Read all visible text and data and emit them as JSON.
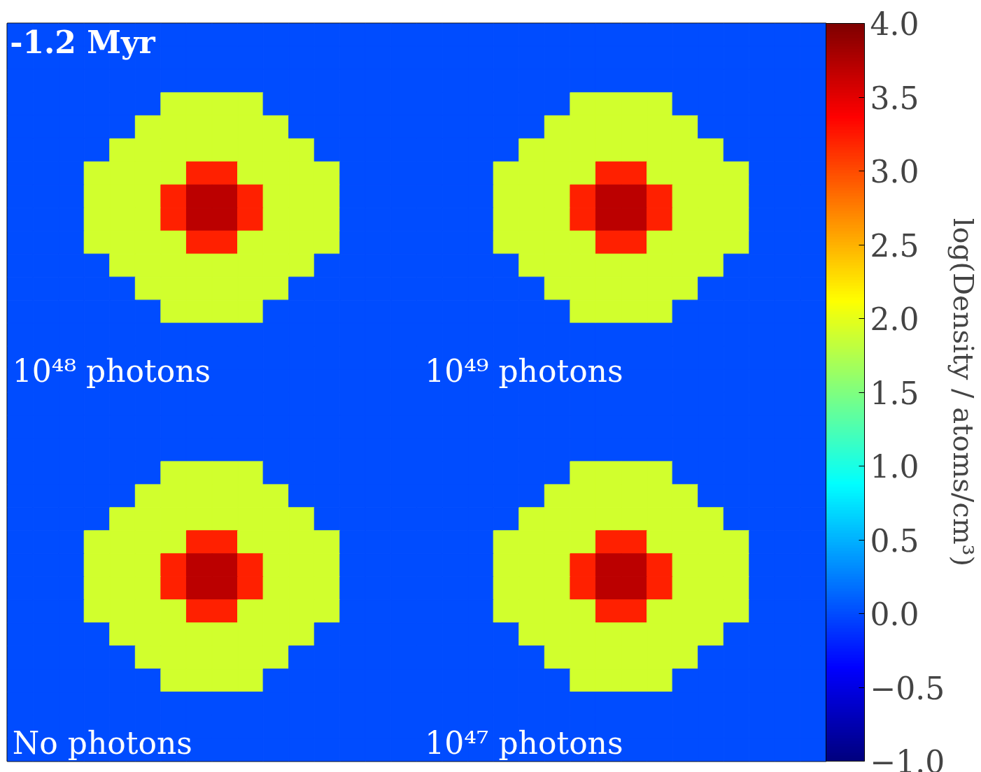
{
  "chart_data": {
    "type": "heatmap",
    "categories": [
      null,
      null,
      null,
      null,
      null,
      null,
      null,
      null,
      null,
      null,
      null,
      null,
      null,
      null,
      null,
      null,
      null,
      null,
      null,
      null,
      null,
      null,
      null,
      null,
      null,
      null,
      null,
      null,
      null,
      null,
      null,
      null
    ],
    "y_categories": [
      null,
      null,
      null,
      null,
      null,
      null,
      null,
      null,
      null,
      null,
      null,
      null,
      null,
      null,
      null,
      null,
      null,
      null,
      null,
      null,
      null,
      null,
      null,
      null,
      null,
      null,
      null,
      null,
      null,
      null,
      null,
      null
    ],
    "cells": [
      [
        0,
        0,
        0,
        0,
        0,
        0,
        0,
        0,
        0,
        0,
        0,
        0,
        0,
        0,
        0,
        0,
        0,
        0,
        0,
        0,
        0,
        0,
        0,
        0,
        0,
        0,
        0,
        0,
        0,
        0,
        0,
        0
      ],
      [
        0,
        0,
        0,
        0,
        0,
        0,
        0,
        0,
        0,
        0,
        0,
        0,
        0,
        0,
        0,
        0,
        0,
        0,
        0,
        0,
        0,
        0,
        0,
        0,
        0,
        0,
        0,
        0,
        0,
        0,
        0,
        0
      ],
      [
        0,
        0,
        0,
        0,
        0,
        0,
        0,
        0,
        0,
        0,
        0,
        0,
        0,
        0,
        0,
        0,
        0,
        0,
        0,
        0,
        0,
        0,
        0,
        0,
        0,
        0,
        0,
        0,
        0,
        0,
        0,
        0
      ],
      [
        0,
        0,
        0,
        0,
        0,
        0,
        1.9,
        1.9,
        1.9,
        1.9,
        0,
        0,
        0,
        0,
        0,
        0,
        0,
        0,
        0,
        0,
        0,
        0,
        1.9,
        1.9,
        1.9,
        1.9,
        0,
        0,
        0,
        0,
        0,
        0
      ],
      [
        0,
        0,
        0,
        0,
        0,
        1.9,
        1.9,
        1.9,
        1.9,
        1.9,
        1.9,
        0,
        0,
        0,
        0,
        0,
        0,
        0,
        0,
        0,
        0,
        1.9,
        1.9,
        1.9,
        1.9,
        1.9,
        1.9,
        0,
        0,
        0,
        0,
        0
      ],
      [
        0,
        0,
        0,
        0,
        1.9,
        1.9,
        1.9,
        1.9,
        1.9,
        1.9,
        1.9,
        1.9,
        0,
        0,
        0,
        0,
        0,
        0,
        0,
        0,
        1.9,
        1.9,
        1.9,
        1.9,
        1.9,
        1.9,
        1.9,
        1.9,
        0,
        0,
        0,
        0
      ],
      [
        0,
        0,
        0,
        1.9,
        1.9,
        1.9,
        1.9,
        3.2,
        3.2,
        1.9,
        1.9,
        1.9,
        1.9,
        0,
        0,
        0,
        0,
        0,
        0,
        1.9,
        1.9,
        1.9,
        1.9,
        3.2,
        3.2,
        1.9,
        1.9,
        1.9,
        1.9,
        0,
        0,
        0
      ],
      [
        0,
        0,
        0,
        1.9,
        1.9,
        1.9,
        3.2,
        3.7,
        3.7,
        3.2,
        1.9,
        1.9,
        1.9,
        0,
        0,
        0,
        0,
        0,
        0,
        1.9,
        1.9,
        1.9,
        3.2,
        3.7,
        3.7,
        3.2,
        1.9,
        1.9,
        1.9,
        0,
        0,
        0
      ],
      [
        0,
        0,
        0,
        1.9,
        1.9,
        1.9,
        3.2,
        3.7,
        3.7,
        3.2,
        1.9,
        1.9,
        1.9,
        0,
        0,
        0,
        0,
        0,
        0,
        1.9,
        1.9,
        1.9,
        3.2,
        3.7,
        3.7,
        3.2,
        1.9,
        1.9,
        1.9,
        0,
        0,
        0
      ],
      [
        0,
        0,
        0,
        1.9,
        1.9,
        1.9,
        1.9,
        3.2,
        3.2,
        1.9,
        1.9,
        1.9,
        1.9,
        0,
        0,
        0,
        0,
        0,
        0,
        1.9,
        1.9,
        1.9,
        1.9,
        3.2,
        3.2,
        1.9,
        1.9,
        1.9,
        1.9,
        0,
        0,
        0
      ],
      [
        0,
        0,
        0,
        0,
        1.9,
        1.9,
        1.9,
        1.9,
        1.9,
        1.9,
        1.9,
        1.9,
        0,
        0,
        0,
        0,
        0,
        0,
        0,
        0,
        1.9,
        1.9,
        1.9,
        1.9,
        1.9,
        1.9,
        1.9,
        1.9,
        0,
        0,
        0,
        0
      ],
      [
        0,
        0,
        0,
        0,
        0,
        1.9,
        1.9,
        1.9,
        1.9,
        1.9,
        1.9,
        0,
        0,
        0,
        0,
        0,
        0,
        0,
        0,
        0,
        0,
        1.9,
        1.9,
        1.9,
        1.9,
        1.9,
        1.9,
        0,
        0,
        0,
        0,
        0
      ],
      [
        0,
        0,
        0,
        0,
        0,
        0,
        1.9,
        1.9,
        1.9,
        1.9,
        0,
        0,
        0,
        0,
        0,
        0,
        0,
        0,
        0,
        0,
        0,
        0,
        1.9,
        1.9,
        1.9,
        1.9,
        0,
        0,
        0,
        0,
        0,
        0
      ],
      [
        0,
        0,
        0,
        0,
        0,
        0,
        0,
        0,
        0,
        0,
        0,
        0,
        0,
        0,
        0,
        0,
        0,
        0,
        0,
        0,
        0,
        0,
        0,
        0,
        0,
        0,
        0,
        0,
        0,
        0,
        0,
        0
      ],
      [
        0,
        0,
        0,
        0,
        0,
        0,
        0,
        0,
        0,
        0,
        0,
        0,
        0,
        0,
        0,
        0,
        0,
        0,
        0,
        0,
        0,
        0,
        0,
        0,
        0,
        0,
        0,
        0,
        0,
        0,
        0,
        0
      ],
      [
        0,
        0,
        0,
        0,
        0,
        0,
        0,
        0,
        0,
        0,
        0,
        0,
        0,
        0,
        0,
        0,
        0,
        0,
        0,
        0,
        0,
        0,
        0,
        0,
        0,
        0,
        0,
        0,
        0,
        0,
        0,
        0
      ],
      [
        0,
        0,
        0,
        0,
        0,
        0,
        0,
        0,
        0,
        0,
        0,
        0,
        0,
        0,
        0,
        0,
        0,
        0,
        0,
        0,
        0,
        0,
        0,
        0,
        0,
        0,
        0,
        0,
        0,
        0,
        0,
        0
      ],
      [
        0,
        0,
        0,
        0,
        0,
        0,
        0,
        0,
        0,
        0,
        0,
        0,
        0,
        0,
        0,
        0,
        0,
        0,
        0,
        0,
        0,
        0,
        0,
        0,
        0,
        0,
        0,
        0,
        0,
        0,
        0,
        0
      ],
      [
        0,
        0,
        0,
        0,
        0,
        0,
        0,
        0,
        0,
        0,
        0,
        0,
        0,
        0,
        0,
        0,
        0,
        0,
        0,
        0,
        0,
        0,
        0,
        0,
        0,
        0,
        0,
        0,
        0,
        0,
        0,
        0
      ],
      [
        0,
        0,
        0,
        0,
        0,
        0,
        1.9,
        1.9,
        1.9,
        1.9,
        0,
        0,
        0,
        0,
        0,
        0,
        0,
        0,
        0,
        0,
        0,
        0,
        1.9,
        1.9,
        1.9,
        1.9,
        0,
        0,
        0,
        0,
        0,
        0
      ],
      [
        0,
        0,
        0,
        0,
        0,
        1.9,
        1.9,
        1.9,
        1.9,
        1.9,
        1.9,
        0,
        0,
        0,
        0,
        0,
        0,
        0,
        0,
        0,
        0,
        1.9,
        1.9,
        1.9,
        1.9,
        1.9,
        1.9,
        0,
        0,
        0,
        0,
        0
      ],
      [
        0,
        0,
        0,
        0,
        1.9,
        1.9,
        1.9,
        1.9,
        1.9,
        1.9,
        1.9,
        1.9,
        0,
        0,
        0,
        0,
        0,
        0,
        0,
        0,
        1.9,
        1.9,
        1.9,
        1.9,
        1.9,
        1.9,
        1.9,
        1.9,
        0,
        0,
        0,
        0
      ],
      [
        0,
        0,
        0,
        1.9,
        1.9,
        1.9,
        1.9,
        3.2,
        3.2,
        1.9,
        1.9,
        1.9,
        1.9,
        0,
        0,
        0,
        0,
        0,
        0,
        1.9,
        1.9,
        1.9,
        1.9,
        3.2,
        3.2,
        1.9,
        1.9,
        1.9,
        1.9,
        0,
        0,
        0
      ],
      [
        0,
        0,
        0,
        1.9,
        1.9,
        1.9,
        3.2,
        3.7,
        3.7,
        3.2,
        1.9,
        1.9,
        1.9,
        0,
        0,
        0,
        0,
        0,
        0,
        1.9,
        1.9,
        1.9,
        3.2,
        3.7,
        3.7,
        3.2,
        1.9,
        1.9,
        1.9,
        0,
        0,
        0
      ],
      [
        0,
        0,
        0,
        1.9,
        1.9,
        1.9,
        3.2,
        3.7,
        3.7,
        3.2,
        1.9,
        1.9,
        1.9,
        0,
        0,
        0,
        0,
        0,
        0,
        1.9,
        1.9,
        1.9,
        3.2,
        3.7,
        3.7,
        3.2,
        1.9,
        1.9,
        1.9,
        0,
        0,
        0
      ],
      [
        0,
        0,
        0,
        1.9,
        1.9,
        1.9,
        1.9,
        3.2,
        3.2,
        1.9,
        1.9,
        1.9,
        1.9,
        0,
        0,
        0,
        0,
        0,
        0,
        1.9,
        1.9,
        1.9,
        1.9,
        3.2,
        3.2,
        1.9,
        1.9,
        1.9,
        1.9,
        0,
        0,
        0
      ],
      [
        0,
        0,
        0,
        0,
        1.9,
        1.9,
        1.9,
        1.9,
        1.9,
        1.9,
        1.9,
        1.9,
        0,
        0,
        0,
        0,
        0,
        0,
        0,
        0,
        1.9,
        1.9,
        1.9,
        1.9,
        1.9,
        1.9,
        1.9,
        1.9,
        0,
        0,
        0,
        0
      ],
      [
        0,
        0,
        0,
        0,
        0,
        1.9,
        1.9,
        1.9,
        1.9,
        1.9,
        1.9,
        0,
        0,
        0,
        0,
        0,
        0,
        0,
        0,
        0,
        0,
        1.9,
        1.9,
        1.9,
        1.9,
        1.9,
        1.9,
        0,
        0,
        0,
        0,
        0
      ],
      [
        0,
        0,
        0,
        0,
        0,
        0,
        1.9,
        1.9,
        1.9,
        1.9,
        0,
        0,
        0,
        0,
        0,
        0,
        0,
        0,
        0,
        0,
        0,
        0,
        1.9,
        1.9,
        1.9,
        1.9,
        0,
        0,
        0,
        0,
        0,
        0
      ],
      [
        0,
        0,
        0,
        0,
        0,
        0,
        0,
        0,
        0,
        0,
        0,
        0,
        0,
        0,
        0,
        0,
        0,
        0,
        0,
        0,
        0,
        0,
        0,
        0,
        0,
        0,
        0,
        0,
        0,
        0,
        0,
        0
      ],
      [
        0,
        0,
        0,
        0,
        0,
        0,
        0,
        0,
        0,
        0,
        0,
        0,
        0,
        0,
        0,
        0,
        0,
        0,
        0,
        0,
        0,
        0,
        0,
        0,
        0,
        0,
        0,
        0,
        0,
        0,
        0,
        0
      ],
      [
        0,
        0,
        0,
        0,
        0,
        0,
        0,
        0,
        0,
        0,
        0,
        0,
        0,
        0,
        0,
        0,
        0,
        0,
        0,
        0,
        0,
        0,
        0,
        0,
        0,
        0,
        0,
        0,
        0,
        0,
        0,
        0
      ]
    ],
    "clim": [
      -1.0,
      4.0
    ],
    "cticks": [
      {
        "value": -1.0,
        "label": "−1.0"
      },
      {
        "value": -0.5,
        "label": "−0.5"
      },
      {
        "value": 0.0,
        "label": "0.0"
      },
      {
        "value": 0.5,
        "label": "0.5"
      },
      {
        "value": 1.0,
        "label": "1.0"
      },
      {
        "value": 1.5,
        "label": "1.5"
      },
      {
        "value": 2.0,
        "label": "2.0"
      },
      {
        "value": 2.5,
        "label": "2.5"
      },
      {
        "value": 3.0,
        "label": "3.0"
      },
      {
        "value": 3.5,
        "label": "3.5"
      },
      {
        "value": 4.0,
        "label": "4.0"
      }
    ],
    "clabel": "log(Density / atoms/cm³)",
    "annotations": [
      "-1.2 Myr",
      "10⁴⁸ photons",
      "10⁴⁹ photons",
      "No photons",
      "10⁴⁷ photons"
    ],
    "tick_labels": false
  }
}
